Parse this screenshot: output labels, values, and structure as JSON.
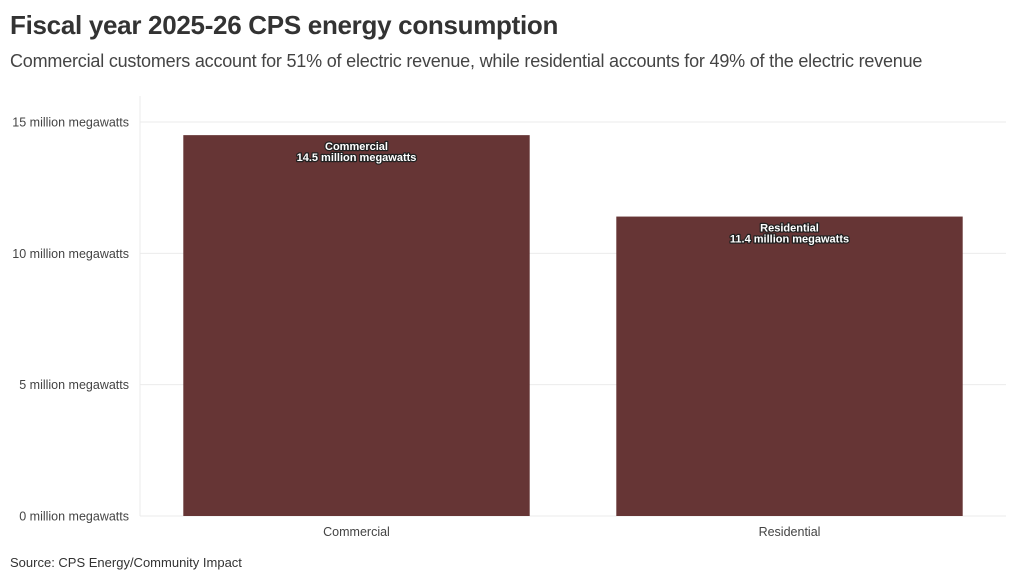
{
  "header": {
    "title": "Fiscal year 2025-26 CPS energy consumption",
    "subtitle": "Commercial customers account for 51% of electric revenue, while residential accounts for 49% of the electric revenue"
  },
  "footer": {
    "source": "Source: CPS Energy/Community Impact"
  },
  "colors": {
    "bar": "#663535",
    "grid": "#ebebeb"
  },
  "chart_data": {
    "type": "bar",
    "title": "Fiscal year 2025-26 CPS energy consumption",
    "xlabel": "",
    "ylabel": "",
    "categories": [
      "Commercial",
      "Residential"
    ],
    "values": [
      14.5,
      11.4
    ],
    "unit": "million megawatts",
    "bar_labels": [
      {
        "name": "Commercial",
        "value_text": "14.5 million megawatts"
      },
      {
        "name": "Residential",
        "value_text": "11.4 million megawatts"
      }
    ],
    "ylim": [
      0,
      15
    ],
    "yticks": [
      0,
      5,
      10,
      15
    ],
    "ytick_labels": [
      "0 million megawatts",
      "5 million megawatts",
      "10 million megawatts",
      "15 million megawatts"
    ],
    "grid": true,
    "legend": "none"
  }
}
